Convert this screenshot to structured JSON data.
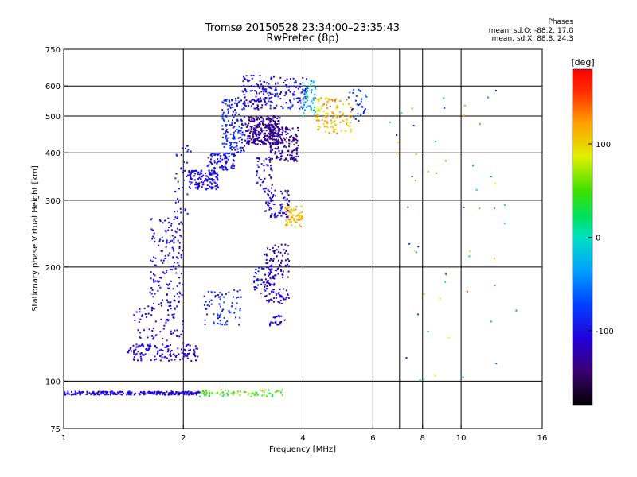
{
  "header": {
    "title": "Tromsø 20150528 23:34:00–23:35:43",
    "subtitle": "RwPretec (8p)"
  },
  "phases": {
    "heading": "Phases",
    "line1": "mean, sd,O: -88.2, 17.0",
    "line2": "mean, sd,X:  88.8, 24.3"
  },
  "colorbar": {
    "unit": "[deg]",
    "range": [
      -180,
      180
    ],
    "ticks": [
      {
        "value": 100,
        "label": "100"
      },
      {
        "value": 0,
        "label": "0"
      },
      {
        "value": -100,
        "label": "-100"
      }
    ]
  },
  "chart_data": {
    "type": "scatter",
    "title": "Tromsø 20150528 23:34:00–23:35:43",
    "subtitle": "RwPretec (8p)",
    "xlabel": "Frequency [MHz]",
    "ylabel": "Stationary phase Virtual Height [km]",
    "xscale": "log",
    "yscale": "log",
    "xlim": [
      1,
      16
    ],
    "ylim": [
      75,
      750
    ],
    "grid": true,
    "x_ticks": [
      {
        "value": 1,
        "label": "1"
      },
      {
        "value": 2,
        "label": "2"
      },
      {
        "value": 4,
        "label": "4"
      },
      {
        "value": 6,
        "label": "6"
      },
      {
        "value": 8,
        "label": "8"
      },
      {
        "value": 10,
        "label": "10"
      },
      {
        "value": 16,
        "label": "16"
      }
    ],
    "x_gridlines": [
      2,
      4,
      6,
      7,
      8,
      10
    ],
    "y_ticks": [
      {
        "value": 75,
        "label": "75"
      },
      {
        "value": 100,
        "label": "100"
      },
      {
        "value": 200,
        "label": "200"
      },
      {
        "value": 300,
        "label": "300"
      },
      {
        "value": 400,
        "label": "400"
      },
      {
        "value": 500,
        "label": "500"
      },
      {
        "value": 600,
        "label": "600"
      },
      {
        "value": 750,
        "label": "750"
      }
    ],
    "y_gridlines": [
      100,
      200,
      300,
      400,
      500,
      600
    ],
    "color_quantity": "phase [deg]",
    "series": [
      {
        "freq_range": [
          1.0,
          2.2
        ],
        "height_range": [
          92,
          94
        ],
        "phase_range": [
          -115,
          -95
        ],
        "count": 260
      },
      {
        "freq_range": [
          2.2,
          3.6
        ],
        "height_range": [
          91,
          95
        ],
        "phase_range": [
          20,
          80
        ],
        "count": 70
      },
      {
        "freq_range": [
          1.45,
          2.2
        ],
        "height_range": [
          113,
          125
        ],
        "phase_range": [
          -120,
          -95
        ],
        "count": 120
      },
      {
        "freq_range": [
          1.5,
          2.0
        ],
        "height_range": [
          120,
          160
        ],
        "phase_range": [
          -115,
          -95
        ],
        "count": 90
      },
      {
        "freq_range": [
          1.65,
          2.0
        ],
        "height_range": [
          160,
          270
        ],
        "phase_range": [
          -115,
          -90
        ],
        "count": 150
      },
      {
        "freq_range": [
          1.9,
          2.1
        ],
        "height_range": [
          270,
          420
        ],
        "phase_range": [
          -110,
          -85
        ],
        "count": 40
      },
      {
        "freq_range": [
          2.05,
          2.45
        ],
        "height_range": [
          320,
          360
        ],
        "phase_range": [
          -115,
          -90
        ],
        "count": 130
      },
      {
        "freq_range": [
          2.3,
          2.7
        ],
        "height_range": [
          360,
          400
        ],
        "phase_range": [
          -110,
          -85
        ],
        "count": 80
      },
      {
        "freq_range": [
          2.5,
          2.9
        ],
        "height_range": [
          400,
          560
        ],
        "phase_range": [
          -110,
          -70
        ],
        "count": 160
      },
      {
        "freq_range": [
          2.8,
          3.2
        ],
        "height_range": [
          520,
          640
        ],
        "phase_range": [
          -130,
          -90
        ],
        "count": 90
      },
      {
        "freq_range": [
          2.9,
          3.5
        ],
        "height_range": [
          420,
          500
        ],
        "phase_range": [
          -150,
          -115
        ],
        "count": 280
      },
      {
        "freq_range": [
          3.3,
          3.9
        ],
        "height_range": [
          380,
          470
        ],
        "phase_range": [
          -150,
          -115
        ],
        "count": 160
      },
      {
        "freq_range": [
          3.2,
          4.1
        ],
        "height_range": [
          520,
          640
        ],
        "phase_range": [
          -120,
          -80
        ],
        "count": 120
      },
      {
        "freq_range": [
          4.0,
          4.3
        ],
        "height_range": [
          500,
          620
        ],
        "phase_range": [
          -60,
          20
        ],
        "count": 50
      },
      {
        "freq_range": [
          4.3,
          5.3
        ],
        "height_range": [
          450,
          560
        ],
        "phase_range": [
          80,
          140
        ],
        "count": 120
      },
      {
        "freq_range": [
          5.2,
          5.8
        ],
        "height_range": [
          480,
          590
        ],
        "phase_range": [
          -100,
          -60
        ],
        "count": 30
      },
      {
        "freq_range": [
          3.05,
          3.35
        ],
        "height_range": [
          320,
          390
        ],
        "phase_range": [
          -110,
          -90
        ],
        "count": 40
      },
      {
        "freq_range": [
          3.2,
          3.7
        ],
        "height_range": [
          270,
          320
        ],
        "phase_range": [
          -120,
          -95
        ],
        "count": 80
      },
      {
        "freq_range": [
          3.6,
          4.0
        ],
        "height_range": [
          255,
          290
        ],
        "phase_range": [
          95,
          130
        ],
        "count": 60
      },
      {
        "freq_range": [
          3.2,
          3.7
        ],
        "height_range": [
          160,
          230
        ],
        "phase_range": [
          -130,
          -100
        ],
        "count": 140
      },
      {
        "freq_range": [
          3.3,
          3.6
        ],
        "height_range": [
          140,
          150
        ],
        "phase_range": [
          -115,
          -95
        ],
        "count": 25
      },
      {
        "freq_range": [
          2.25,
          2.8
        ],
        "height_range": [
          140,
          175
        ],
        "phase_range": [
          -100,
          -70
        ],
        "count": 70
      },
      {
        "freq_range": [
          3.0,
          3.2
        ],
        "height_range": [
          170,
          200
        ],
        "phase_range": [
          -100,
          -80
        ],
        "count": 30
      },
      {
        "freq_range": [
          6.6,
          14.0
        ],
        "height_range": [
          100,
          620
        ],
        "phase_range": [
          -130,
          150
        ],
        "count": 55
      }
    ]
  }
}
